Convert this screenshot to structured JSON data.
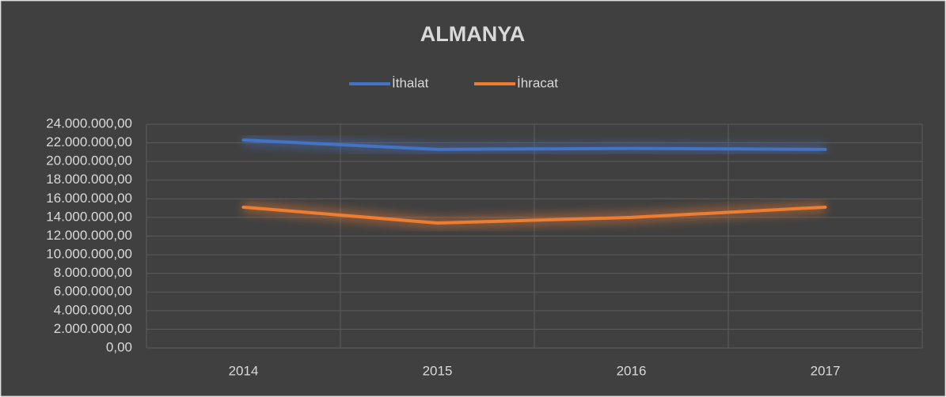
{
  "chart_data": {
    "type": "line",
    "title": "ALMANYA",
    "categories": [
      "2014",
      "2015",
      "2016",
      "2017"
    ],
    "series": [
      {
        "name": "İthalat",
        "color": "#4472c4",
        "values": [
          22300000,
          21300000,
          21400000,
          21300000
        ]
      },
      {
        "name": "İhracat",
        "color": "#ed7d31",
        "values": [
          15100000,
          13400000,
          14000000,
          15100000
        ]
      }
    ],
    "ylim": [
      0,
      24000000
    ],
    "yticks": [
      {
        "value": 0,
        "label": "0,00"
      },
      {
        "value": 2000000,
        "label": "2.000.000,00"
      },
      {
        "value": 4000000,
        "label": "4.000.000,00"
      },
      {
        "value": 6000000,
        "label": "6.000.000,00"
      },
      {
        "value": 8000000,
        "label": "8.000.000,00"
      },
      {
        "value": 10000000,
        "label": "10.000.000,00"
      },
      {
        "value": 12000000,
        "label": "12.000.000,00"
      },
      {
        "value": 14000000,
        "label": "14.000.000,00"
      },
      {
        "value": 16000000,
        "label": "16.000.000,00"
      },
      {
        "value": 18000000,
        "label": "18.000.000,00"
      },
      {
        "value": 20000000,
        "label": "20.000.000,00"
      },
      {
        "value": 22000000,
        "label": "22.000.000,00"
      },
      {
        "value": 24000000,
        "label": "24.000.000,00"
      }
    ],
    "grid": true,
    "legend": "top"
  }
}
